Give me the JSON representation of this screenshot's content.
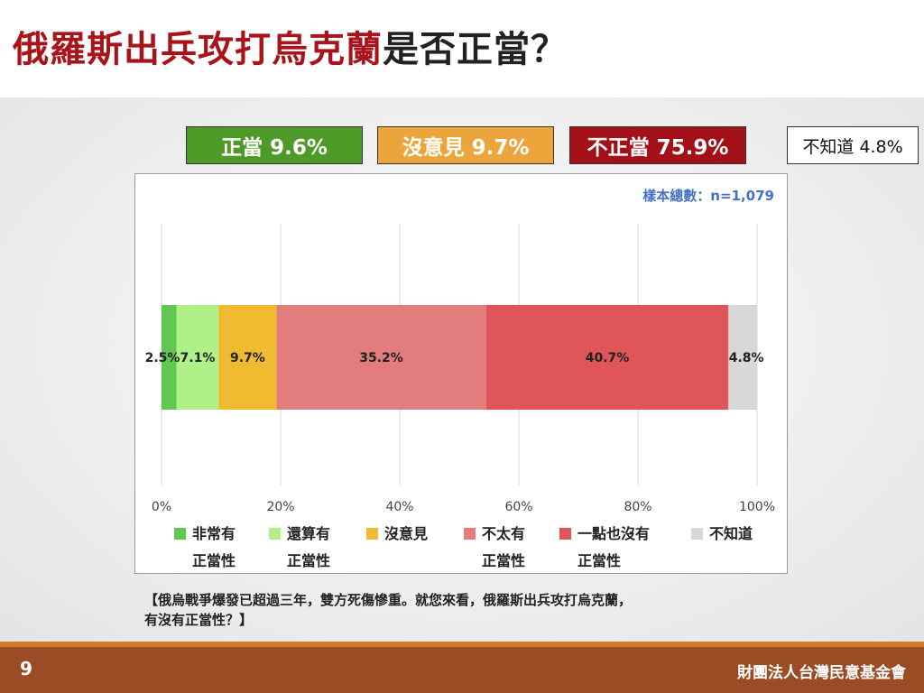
{
  "title": {
    "part1": "俄羅斯出兵攻打烏克蘭",
    "part2": "是否正當？"
  },
  "summary": [
    {
      "label": "正當 9.6%",
      "bg": "#4e9a28",
      "fg": "#ffffff"
    },
    {
      "label": "沒意見 9.7%",
      "bg": "#eba53a",
      "fg": "#ffffff"
    },
    {
      "label": "不正當 75.9%",
      "bg": "#a31017",
      "fg": "#ffffff"
    },
    {
      "label": "不知道 4.8%",
      "bg": "#ffffff",
      "fg": "#111111"
    }
  ],
  "sample_size": "樣本總數：n=1,079",
  "chart_data": {
    "type": "bar",
    "orientation": "horizontal-stacked-100",
    "x_ticks": [
      "0%",
      "20%",
      "40%",
      "60%",
      "80%",
      "100%"
    ],
    "xlim": [
      0,
      100
    ],
    "grid": true,
    "series": [
      {
        "name": "非常有正當性",
        "value": 2.5,
        "label": "2.5%",
        "color": "#60c850"
      },
      {
        "name": "還算有正當性",
        "value": 7.1,
        "label": "7.1%",
        "color": "#b0f088"
      },
      {
        "name": "沒意見",
        "value": 9.7,
        "label": "9.7%",
        "color": "#f0bb30"
      },
      {
        "name": "不太有正當性",
        "value": 35.2,
        "label": "35.2%",
        "color": "#e37c7c"
      },
      {
        "name": "一點也沒有正當性",
        "value": 40.7,
        "label": "40.7%",
        "color": "#e05558"
      },
      {
        "name": "不知道",
        "value": 4.8,
        "label": "4.8%",
        "color": "#d8d8d8"
      }
    ]
  },
  "legend": [
    {
      "line1": "非常有",
      "line2": "正當性",
      "color": "#60c850"
    },
    {
      "line1": "還算有",
      "line2": "正當性",
      "color": "#b0f088"
    },
    {
      "line1": "沒意見",
      "line2": "",
      "color": "#f0bb30"
    },
    {
      "line1": "不太有",
      "line2": "正當性",
      "color": "#e37c7c"
    },
    {
      "line1": "一點也沒有",
      "line2": "正當性",
      "color": "#e05558"
    },
    {
      "line1": "不知道",
      "line2": "",
      "color": "#d8d8d8"
    }
  ],
  "question": {
    "line1": "【俄烏戰爭爆發已超過三年，雙方死傷慘重。就您來看，俄羅斯出兵攻打烏克蘭，",
    "line2": "有沒有正當性？】"
  },
  "footer": {
    "page_number": "9",
    "organization": "財團法人台灣民意基金會"
  }
}
